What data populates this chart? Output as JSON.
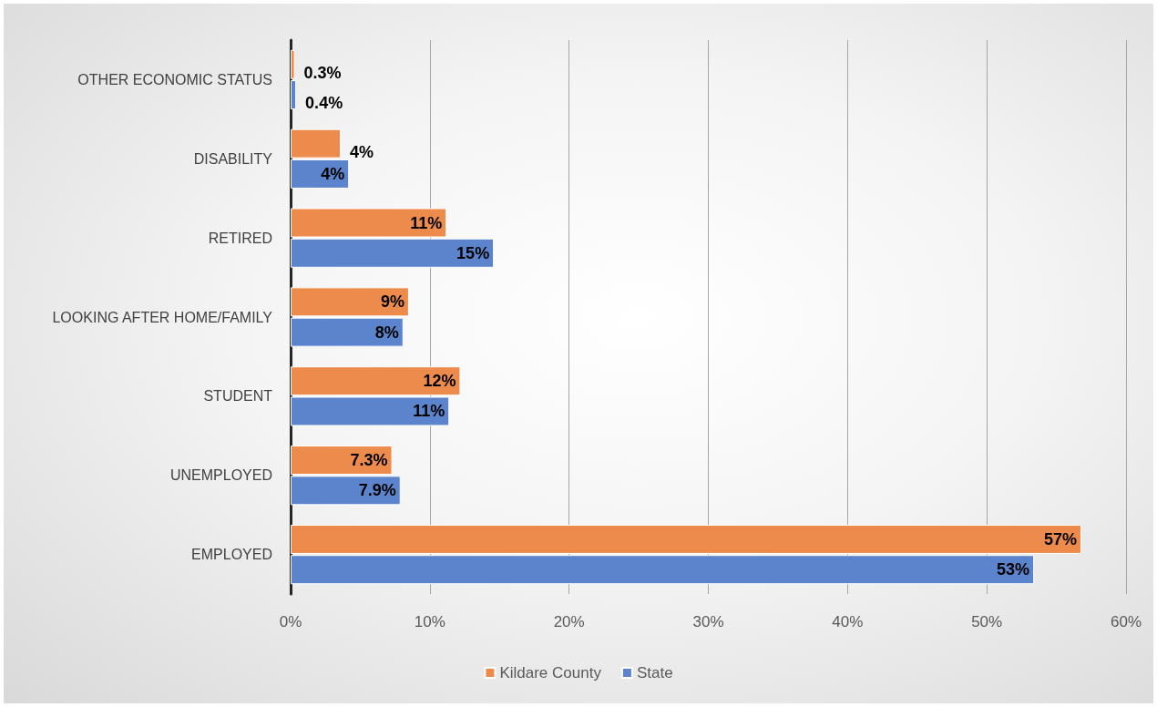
{
  "chart_data": {
    "type": "bar",
    "orientation": "horizontal",
    "categories": [
      "OTHER ECONOMIC STATUS",
      "DISABILITY",
      "RETIRED",
      "LOOKING AFTER HOME/FAMILY",
      "STUDENT",
      "UNEMPLOYED",
      "EMPLOYED"
    ],
    "series": [
      {
        "name": "Kildare County",
        "color": "#ed8b4c",
        "values": [
          0.3,
          3.6,
          11.2,
          8.5,
          12.2,
          7.3,
          56.8
        ],
        "value_labels": [
          "0.3%",
          "4%",
          "11%",
          "9%",
          "12%",
          "7.3%",
          "57%"
        ]
      },
      {
        "name": "State",
        "color": "#5b84cc",
        "values": [
          0.4,
          4.2,
          14.6,
          8.1,
          11.4,
          7.9,
          53.4
        ],
        "value_labels": [
          "0.4%",
          "4%",
          "15%",
          "8%",
          "11%",
          "7.9%",
          "53%"
        ]
      }
    ],
    "xlim": [
      0,
      60
    ],
    "xticks": [
      {
        "value": 0,
        "label": "0%"
      },
      {
        "value": 10,
        "label": "10%"
      },
      {
        "value": 20,
        "label": "20%"
      },
      {
        "value": 30,
        "label": "30%"
      },
      {
        "value": 40,
        "label": "40%"
      },
      {
        "value": 50,
        "label": "50%"
      },
      {
        "value": 60,
        "label": "60%"
      }
    ],
    "grid": "x",
    "legend": "bottom"
  }
}
